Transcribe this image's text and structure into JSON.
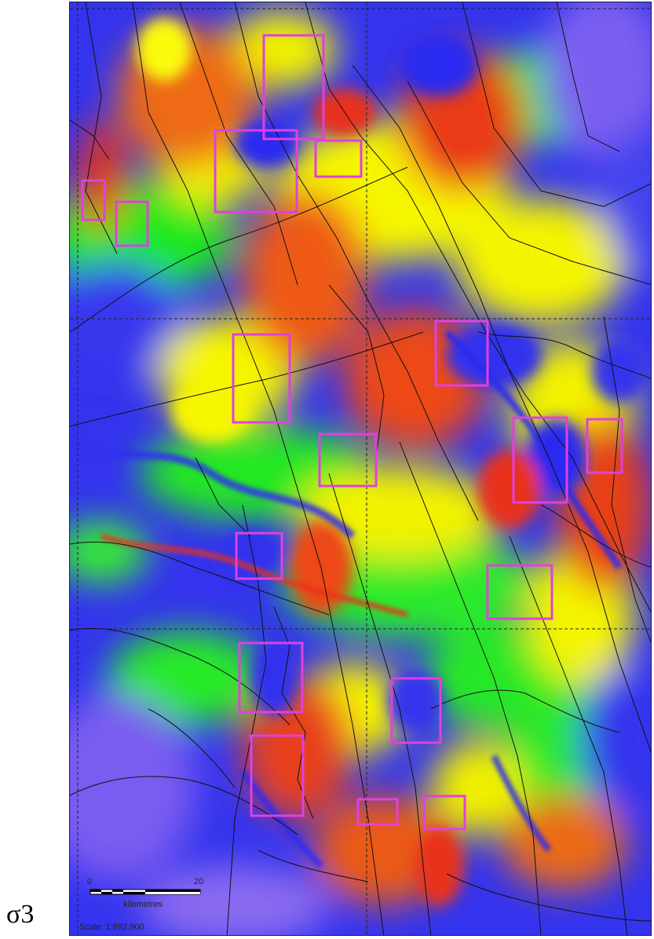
{
  "figure": {
    "label": "σ3"
  },
  "scale_bar": {
    "tick_start": "0",
    "tick_end": "20",
    "unit": "kilometres",
    "scale_text": "Scale: 1:692,900"
  },
  "highlight_box_color": "#e040e0",
  "fault_line_color": "#111111",
  "grid_line_color": "#222222",
  "color_ramp": [
    "#7b5cf0",
    "#2b2bf0",
    "#12e812",
    "#f5f500",
    "#f08a1a",
    "#e8321a"
  ],
  "highlight_region_count": 17
}
